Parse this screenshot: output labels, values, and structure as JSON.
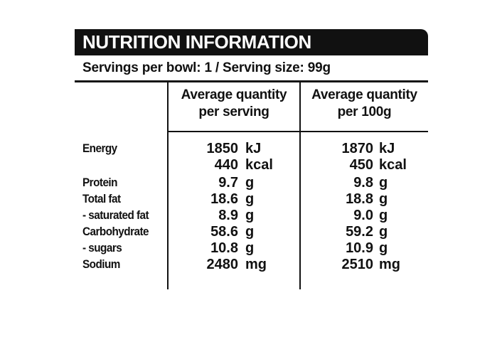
{
  "label": {
    "title": "NUTRITION INFORMATION",
    "servings_line": "Servings per bowl: 1 / Serving size: 99g",
    "columns": {
      "per_serving": {
        "line1": "Average quantity",
        "line2": "per serving"
      },
      "per_100g": {
        "line1": "Average quantity",
        "line2": "per 100g"
      }
    },
    "rows": [
      {
        "name": "Energy",
        "serv_value": "1850",
        "serv_unit": "kJ",
        "per100_value": "1870",
        "per100_unit": "kJ"
      },
      {
        "name": "",
        "serv_value": "440",
        "serv_unit": "kcal",
        "per100_value": "450",
        "per100_unit": "kcal"
      },
      {
        "name": "Protein",
        "serv_value": "9.7",
        "serv_unit": "g",
        "per100_value": "9.8",
        "per100_unit": "g"
      },
      {
        "name": "Total fat",
        "serv_value": "18.6",
        "serv_unit": "g",
        "per100_value": "18.8",
        "per100_unit": "g"
      },
      {
        "name": "- saturated fat",
        "serv_value": "8.9",
        "serv_unit": "g",
        "per100_value": "9.0",
        "per100_unit": "g"
      },
      {
        "name": "Carbohydrate",
        "serv_value": "58.6",
        "serv_unit": "g",
        "per100_value": "59.2",
        "per100_unit": "g"
      },
      {
        "name": " - sugars",
        "serv_value": "10.8",
        "serv_unit": "g",
        "per100_value": "10.9",
        "per100_unit": "g"
      },
      {
        "name": "Sodium",
        "serv_value": "2480",
        "serv_unit": "mg",
        "per100_value": "2510",
        "per100_unit": "mg"
      }
    ]
  }
}
